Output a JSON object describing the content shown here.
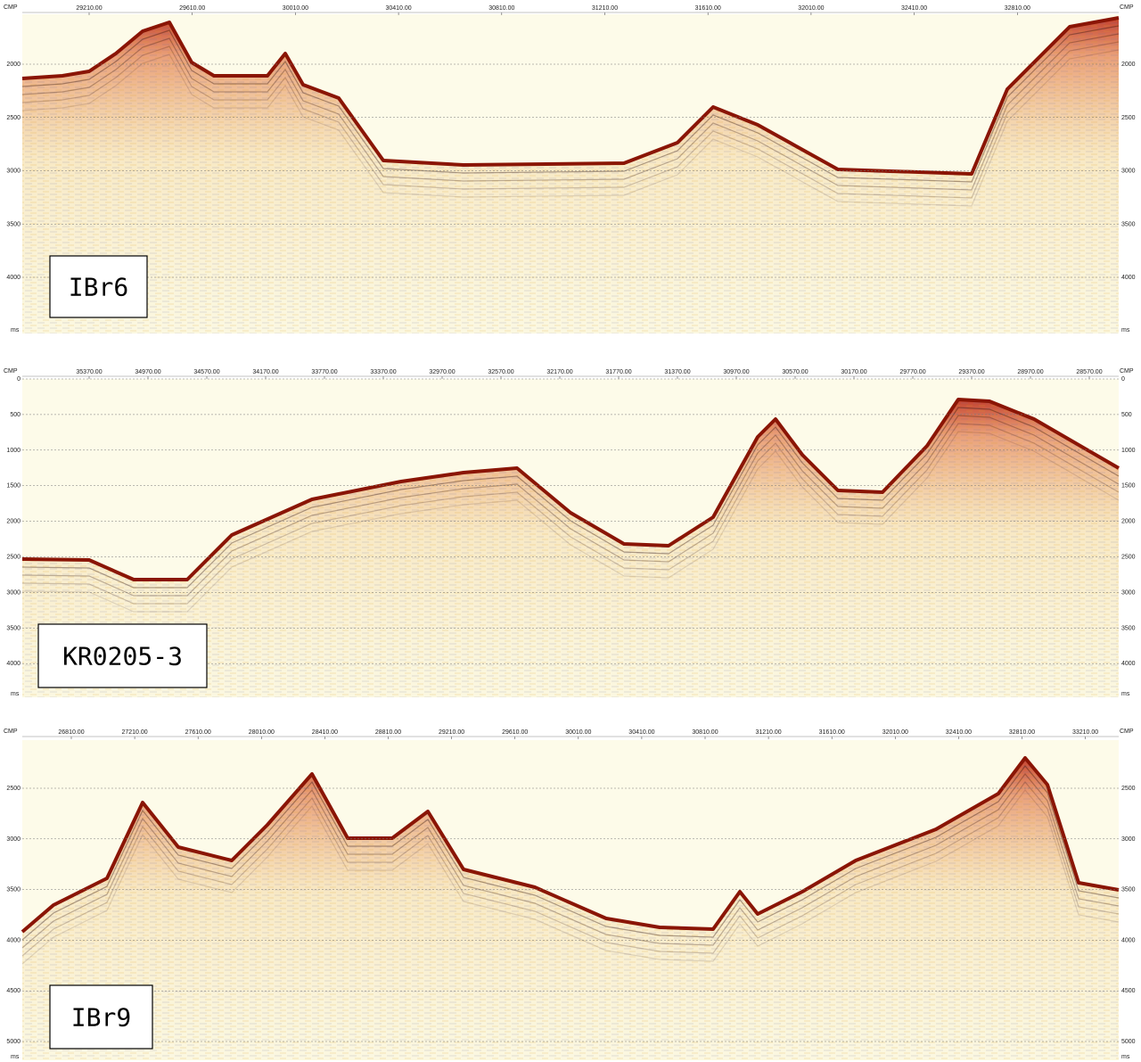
{
  "panels": [
    {
      "label": "IBr6",
      "x_axis_title": "CMP",
      "y_axis_unit": "ms",
      "x_ticks": [
        "29210.00",
        "29610.00",
        "30010.00",
        "30410.00",
        "30810.00",
        "31210.00",
        "31610.00",
        "32010.00",
        "32410.00",
        "32810.00"
      ],
      "y_ticks": [
        2000,
        2500,
        3000,
        3500,
        4000
      ]
    },
    {
      "label": "KR0205-3",
      "x_axis_title": "CMP",
      "y_axis_unit": "ms",
      "x_ticks": [
        "35370.00",
        "34970.00",
        "34570.00",
        "34170.00",
        "33770.00",
        "33370.00",
        "32970.00",
        "32570.00",
        "32170.00",
        "31770.00",
        "31370.00",
        "30970.00",
        "30570.00",
        "30170.00",
        "29770.00",
        "29370.00",
        "28970.00",
        "28570.00"
      ],
      "y_ticks": [
        0,
        500,
        1000,
        1500,
        2000,
        2500,
        3000,
        3500,
        4000
      ]
    },
    {
      "label": "IBr9",
      "x_axis_title": "CMP",
      "y_axis_unit": "ms",
      "x_ticks": [
        "26810.00",
        "27210.00",
        "27610.00",
        "28010.00",
        "28410.00",
        "28810.00",
        "29210.00",
        "29610.00",
        "30010.00",
        "30410.00",
        "30810.00",
        "31210.00",
        "31610.00",
        "32010.00",
        "32410.00",
        "32810.00",
        "33210.00"
      ],
      "y_ticks": [
        2500,
        3000,
        3500,
        4000,
        4500,
        5000
      ]
    }
  ]
}
